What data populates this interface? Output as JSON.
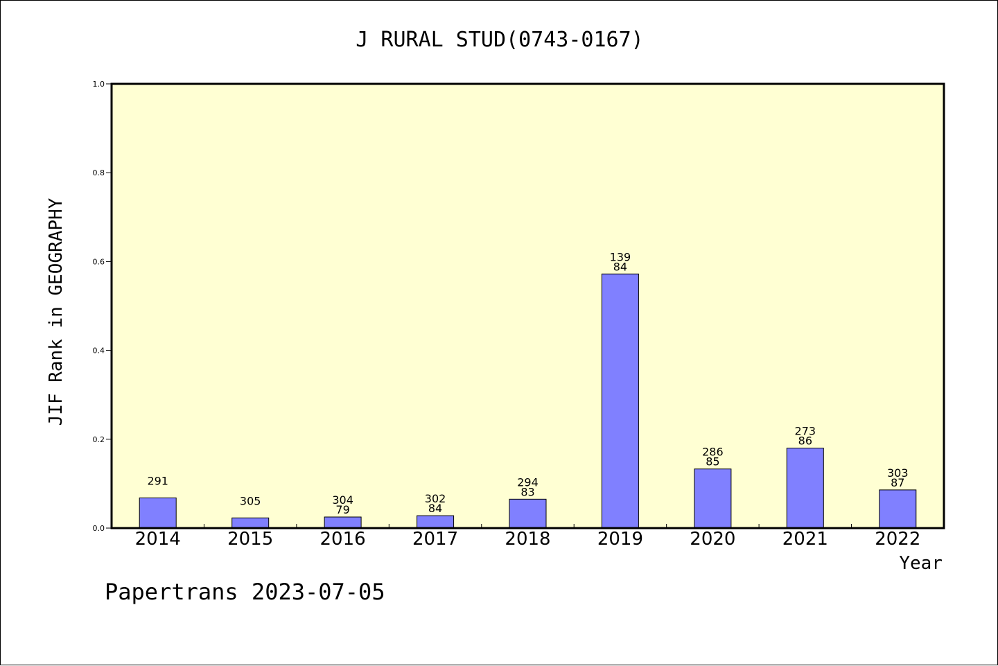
{
  "chart_data": {
    "type": "bar",
    "title": "J RURAL STUD(0743-0167)",
    "xlabel": "Year",
    "ylabel": "JIF Rank in GEOGRAPHY",
    "ylim": [
      0.0,
      1.0
    ],
    "yticks": [
      "0.0",
      "0.2",
      "0.4",
      "0.6",
      "0.8",
      "1.0"
    ],
    "categories": [
      "2014",
      "2015",
      "2016",
      "2017",
      "2018",
      "2019",
      "2020",
      "2021",
      "2022"
    ],
    "values": [
      0.068,
      0.023,
      0.025,
      0.028,
      0.065,
      0.572,
      0.133,
      0.18,
      0.086
    ],
    "labels_top": [
      "291",
      "305",
      "304",
      "302",
      "294",
      "139",
      "286",
      "273",
      "303"
    ],
    "labels_bottom": [
      "",
      "",
      "79",
      "84",
      "83",
      "84",
      "85",
      "86",
      "87"
    ],
    "grid": false,
    "legend": "none"
  },
  "footer": "Papertrans 2023-07-05",
  "colors": {
    "plot_bg": "#ffffd3",
    "bar_fill": "#8080ff",
    "axis": "#000000"
  }
}
